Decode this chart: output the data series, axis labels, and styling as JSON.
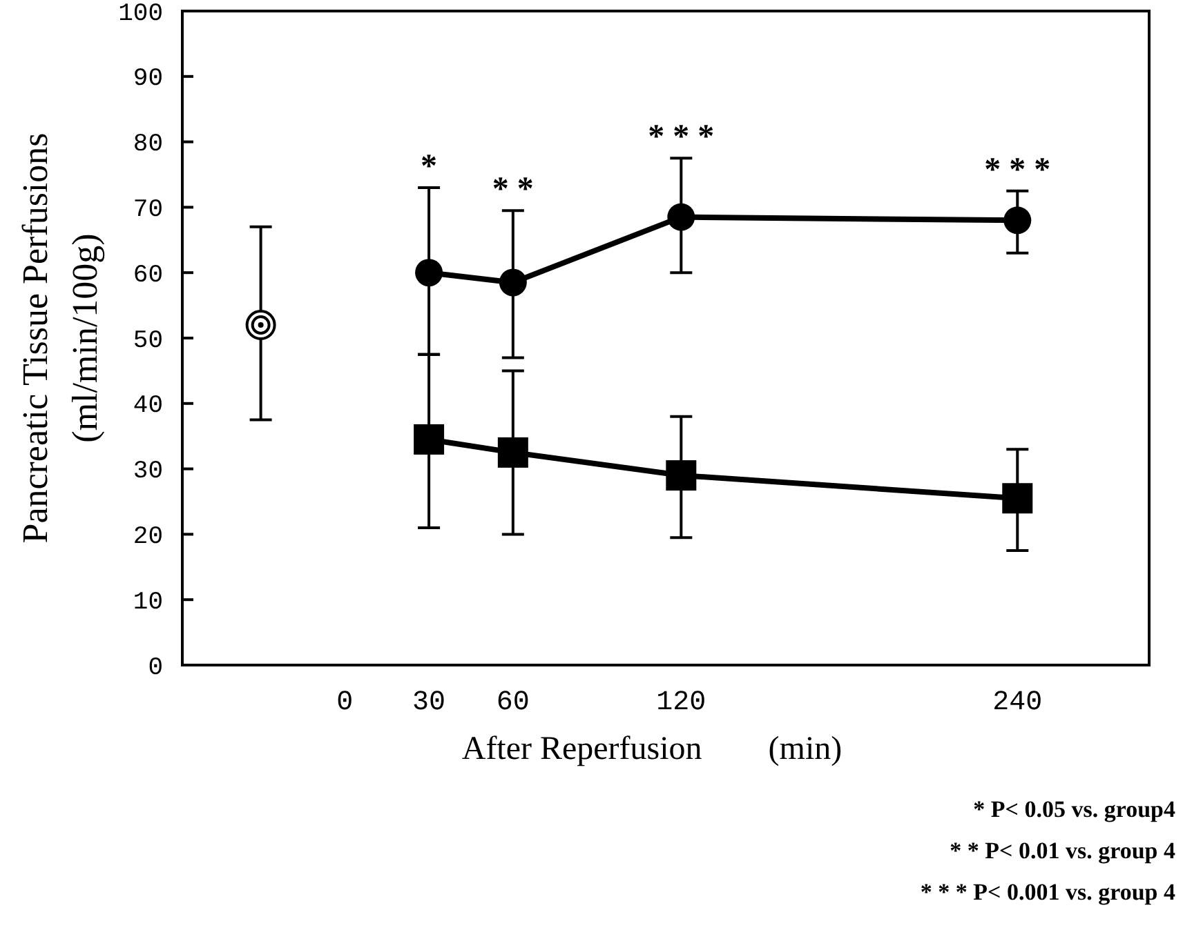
{
  "chart_data": {
    "type": "line",
    "xlabel": "After Reperfusion        (min)",
    "ylabel": "Pancreatic Tissue Perfusions\n(ml/min/100g)",
    "xlim": [
      -58,
      287
    ],
    "xticks": [
      0,
      30,
      60,
      120,
      240
    ],
    "ylim": [
      0,
      100
    ],
    "yticks": [
      0,
      10,
      20,
      30,
      40,
      50,
      60,
      70,
      80,
      90,
      100
    ],
    "grid": false,
    "line_style": "solid",
    "series": [
      {
        "type": "scatter",
        "color": "#000000",
        "marker": "circle",
        "x": [
          -30
        ],
        "values": [
          52
        ],
        "errors": [
          [
            37.5,
            67
          ]
        ]
      },
      {
        "color": "#000000",
        "marker": "circle",
        "x": [
          30,
          60,
          120,
          240
        ],
        "values": [
          60,
          58.5,
          68.5,
          68
        ],
        "errors": [
          [
            47.5,
            73
          ],
          [
            47,
            69.5
          ],
          [
            60,
            77.5
          ],
          [
            63,
            72.5
          ]
        ]
      },
      {
        "color": "#000000",
        "marker": "square",
        "x": [
          30,
          60,
          120,
          240
        ],
        "values": [
          34.5,
          32.5,
          29,
          25.5
        ],
        "errors": [
          [
            21,
            47.5
          ],
          [
            20,
            45
          ],
          [
            19.5,
            38
          ],
          [
            17.5,
            33
          ]
        ]
      }
    ],
    "annotations": [
      {
        "text": "*",
        "x": 30,
        "y": 60
      },
      {
        "text": "* *",
        "x": 60,
        "y": 58.5
      },
      {
        "text": "* * *",
        "x": 120,
        "y": 68.5
      },
      {
        "text": "* * *",
        "x": 240,
        "y": 68
      },
      "* P< 0.05 vs. group4",
      "* * P< 0.01 vs. group 4",
      "* * * P< 0.001 vs. group 4"
    ]
  }
}
